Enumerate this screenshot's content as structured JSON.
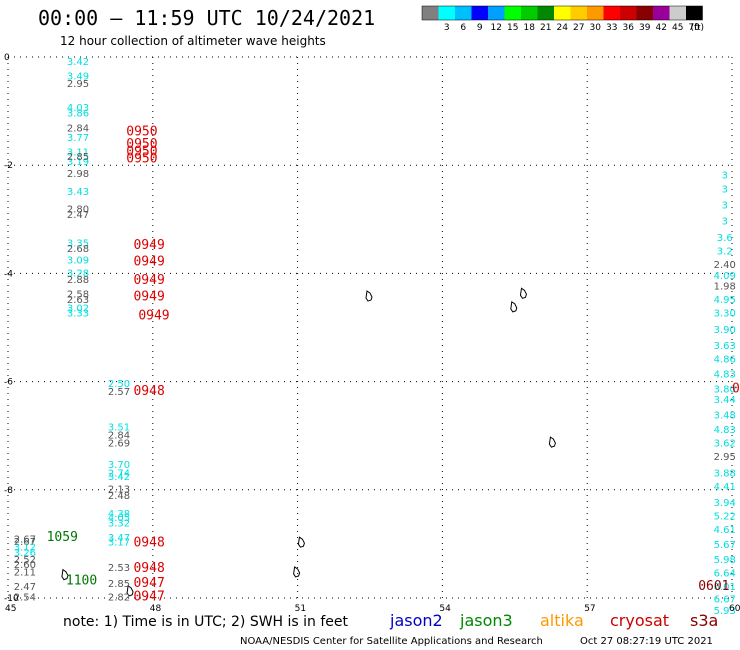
{
  "header": {
    "title": "00:00 – 11:59 UTC 10/24/2021",
    "subtitle": "12 hour collection of altimeter wave heights"
  },
  "legend": {
    "unit": "(ft)",
    "bins": [
      {
        "label": "",
        "color": "#808080"
      },
      {
        "label": "3",
        "color": "#00ffff"
      },
      {
        "label": "6",
        "color": "#00bfff"
      },
      {
        "label": "9",
        "color": "#0000ff"
      },
      {
        "label": "12",
        "color": "#00a0ff"
      },
      {
        "label": "15",
        "color": "#00ff00"
      },
      {
        "label": "18",
        "color": "#00cc00"
      },
      {
        "label": "21",
        "color": "#008800"
      },
      {
        "label": "24",
        "color": "#ffff00"
      },
      {
        "label": "27",
        "color": "#ffcc00"
      },
      {
        "label": "30",
        "color": "#ff9900"
      },
      {
        "label": "33",
        "color": "#ff0000"
      },
      {
        "label": "36",
        "color": "#cc0000"
      },
      {
        "label": "39",
        "color": "#880000"
      },
      {
        "label": "42",
        "color": "#990099"
      },
      {
        "label": "45",
        "color": "#cccccc"
      },
      {
        "label": "70",
        "color": "#000000"
      }
    ]
  },
  "axes": {
    "x_ticks": [
      "45",
      "48",
      "51",
      "54",
      "57",
      "60"
    ],
    "y_ticks": [
      "0",
      "-2",
      "-4",
      "-6",
      "-8",
      "-10"
    ],
    "x_range": [
      45,
      60
    ],
    "y_range": [
      -10,
      0
    ]
  },
  "colors": {
    "cyan": "#00e0e0",
    "gray": "#555555",
    "red": "#dd0000",
    "green": "#007700",
    "darkred": "#880000"
  },
  "tracks": [
    {
      "color": "cyan",
      "points": [
        {
          "lon": 46.45,
          "lat": -0.15,
          "v": "3.42"
        },
        {
          "lon": 46.45,
          "lat": -0.42,
          "v": "3.49"
        },
        {
          "lon": 46.45,
          "lat": -1.0,
          "v": "4.03"
        },
        {
          "lon": 46.45,
          "lat": -1.1,
          "v": "3.86"
        },
        {
          "lon": 46.45,
          "lat": -1.55,
          "v": "3.77"
        },
        {
          "lon": 46.45,
          "lat": -1.82,
          "v": "3.11"
        },
        {
          "lon": 46.45,
          "lat": -2.0,
          "v": "3.19"
        },
        {
          "lon": 46.45,
          "lat": -2.55,
          "v": "3.43"
        },
        {
          "lon": 46.45,
          "lat": -3.5,
          "v": "3.35"
        },
        {
          "lon": 46.45,
          "lat": -3.82,
          "v": "3.09"
        },
        {
          "lon": 46.45,
          "lat": -4.06,
          "v": "3.28"
        },
        {
          "lon": 46.45,
          "lat": -4.7,
          "v": "3.02"
        },
        {
          "lon": 46.45,
          "lat": -4.8,
          "v": "3.33"
        }
      ]
    },
    {
      "color": "gray",
      "points": [
        {
          "lon": 46.45,
          "lat": -0.55,
          "v": "2.95"
        },
        {
          "lon": 46.45,
          "lat": -1.38,
          "v": "2.84"
        },
        {
          "lon": 46.45,
          "lat": -1.9,
          "v": "2.85"
        },
        {
          "lon": 46.45,
          "lat": -2.22,
          "v": "2.98"
        },
        {
          "lon": 46.45,
          "lat": -2.87,
          "v": "2.80"
        },
        {
          "lon": 46.45,
          "lat": -2.98,
          "v": "2.47"
        },
        {
          "lon": 46.45,
          "lat": -3.6,
          "v": "2.68"
        },
        {
          "lon": 46.45,
          "lat": -4.18,
          "v": "2.88"
        },
        {
          "lon": 46.45,
          "lat": -4.45,
          "v": "2.58"
        },
        {
          "lon": 46.45,
          "lat": -4.55,
          "v": "2.63"
        }
      ]
    },
    {
      "color": "cyan",
      "points": [
        {
          "lon": 47.3,
          "lat": -6.1,
          "v": "2.50"
        },
        {
          "lon": 47.3,
          "lat": -6.9,
          "v": "3.51"
        },
        {
          "lon": 47.3,
          "lat": -7.6,
          "v": "3.70"
        },
        {
          "lon": 47.3,
          "lat": -7.75,
          "v": "2.74"
        },
        {
          "lon": 47.3,
          "lat": -7.82,
          "v": "3.42"
        },
        {
          "lon": 47.3,
          "lat": -8.5,
          "v": "4.38"
        },
        {
          "lon": 47.3,
          "lat": -8.58,
          "v": "4.05"
        },
        {
          "lon": 47.3,
          "lat": -8.68,
          "v": "3.32"
        },
        {
          "lon": 47.3,
          "lat": -8.95,
          "v": "3.47"
        },
        {
          "lon": 47.3,
          "lat": -9.03,
          "v": "3.17"
        }
      ]
    },
    {
      "color": "gray",
      "points": [
        {
          "lon": 47.3,
          "lat": -6.25,
          "v": "2.57"
        },
        {
          "lon": 47.3,
          "lat": -7.05,
          "v": "2.84"
        },
        {
          "lon": 47.3,
          "lat": -7.2,
          "v": "2.69"
        },
        {
          "lon": 47.3,
          "lat": -8.05,
          "v": "2.13"
        },
        {
          "lon": 47.3,
          "lat": -8.17,
          "v": "2.48"
        },
        {
          "lon": 47.3,
          "lat": -9.5,
          "v": "2.53"
        },
        {
          "lon": 47.3,
          "lat": -9.8,
          "v": "2.85"
        },
        {
          "lon": 47.3,
          "lat": -10.05,
          "v": "2.82"
        }
      ]
    },
    {
      "color": "gray",
      "points": [
        {
          "lon": 45.35,
          "lat": -8.97,
          "v": "2.67"
        },
        {
          "lon": 45.35,
          "lat": -9.02,
          "v": "2.67"
        },
        {
          "lon": 45.35,
          "lat": -9.35,
          "v": "2.52"
        },
        {
          "lon": 45.35,
          "lat": -9.45,
          "v": "2.60"
        },
        {
          "lon": 45.35,
          "lat": -9.58,
          "v": "2.11"
        },
        {
          "lon": 45.35,
          "lat": -9.85,
          "v": "2.47"
        },
        {
          "lon": 45.35,
          "lat": -10.05,
          "v": "2.54"
        }
      ]
    },
    {
      "color": "cyan",
      "points": [
        {
          "lon": 45.35,
          "lat": -9.12,
          "v": "3.12"
        },
        {
          "lon": 45.35,
          "lat": -9.22,
          "v": "3.26"
        }
      ]
    },
    {
      "color": "cyan",
      "points": [
        {
          "lon": 59.85,
          "lat": -2.25,
          "v": "3"
        },
        {
          "lon": 59.85,
          "lat": -2.5,
          "v": "3"
        },
        {
          "lon": 59.85,
          "lat": -2.8,
          "v": "3"
        },
        {
          "lon": 59.85,
          "lat": -3.1,
          "v": "3"
        },
        {
          "lon": 59.85,
          "lat": -3.4,
          "v": "3.6"
        },
        {
          "lon": 59.85,
          "lat": -3.65,
          "v": "3.2"
        },
        {
          "lon": 59.85,
          "lat": -4.1,
          "v": "4.09"
        },
        {
          "lon": 59.85,
          "lat": -4.55,
          "v": "4.95"
        },
        {
          "lon": 59.85,
          "lat": -4.8,
          "v": "3.30"
        },
        {
          "lon": 59.85,
          "lat": -5.1,
          "v": "3.90"
        },
        {
          "lon": 59.85,
          "lat": -5.4,
          "v": "3.63"
        },
        {
          "lon": 59.85,
          "lat": -5.65,
          "v": "4.86"
        },
        {
          "lon": 59.85,
          "lat": -5.92,
          "v": "4.83"
        },
        {
          "lon": 59.85,
          "lat": -6.2,
          "v": "3.80"
        },
        {
          "lon": 59.85,
          "lat": -6.4,
          "v": "3.44"
        },
        {
          "lon": 59.85,
          "lat": -6.68,
          "v": "3.48"
        },
        {
          "lon": 59.85,
          "lat": -6.95,
          "v": "4.83"
        },
        {
          "lon": 59.85,
          "lat": -7.2,
          "v": "3.62"
        },
        {
          "lon": 59.85,
          "lat": -7.75,
          "v": "3.88"
        },
        {
          "lon": 59.85,
          "lat": -8.0,
          "v": "4.41"
        },
        {
          "lon": 59.85,
          "lat": -8.3,
          "v": "3.94"
        },
        {
          "lon": 59.85,
          "lat": -8.55,
          "v": "5.22"
        },
        {
          "lon": 59.85,
          "lat": -8.8,
          "v": "4.61"
        },
        {
          "lon": 59.85,
          "lat": -9.08,
          "v": "5.67"
        },
        {
          "lon": 59.85,
          "lat": -9.35,
          "v": "5.98"
        },
        {
          "lon": 59.85,
          "lat": -9.6,
          "v": "6.64"
        },
        {
          "lon": 59.85,
          "lat": -9.85,
          "v": "6.01"
        },
        {
          "lon": 59.85,
          "lat": -10.08,
          "v": "6.67"
        },
        {
          "lon": 59.85,
          "lat": -10.3,
          "v": "5.93"
        }
      ]
    },
    {
      "color": "gray",
      "points": [
        {
          "lon": 59.85,
          "lat": -3.9,
          "v": "2.40"
        },
        {
          "lon": 59.85,
          "lat": -4.3,
          "v": "1.98"
        },
        {
          "lon": 59.85,
          "lat": -7.45,
          "v": "2.95"
        }
      ]
    }
  ],
  "time_labels": [
    {
      "lon": 47.45,
      "lat": -1.45,
      "t": "0950",
      "color": "red"
    },
    {
      "lon": 47.45,
      "lat": -1.68,
      "t": "0950",
      "color": "red"
    },
    {
      "lon": 47.45,
      "lat": -1.82,
      "t": "0950",
      "color": "red"
    },
    {
      "lon": 47.45,
      "lat": -1.95,
      "t": "0950",
      "color": "red"
    },
    {
      "lon": 47.6,
      "lat": -3.55,
      "t": "0949",
      "color": "red"
    },
    {
      "lon": 47.6,
      "lat": -3.85,
      "t": "0949",
      "color": "red"
    },
    {
      "lon": 47.6,
      "lat": -4.2,
      "t": "0949",
      "color": "red"
    },
    {
      "lon": 47.6,
      "lat": -4.5,
      "t": "0949",
      "color": "red"
    },
    {
      "lon": 47.7,
      "lat": -4.85,
      "t": "0949",
      "color": "red"
    },
    {
      "lon": 47.6,
      "lat": -6.25,
      "t": "0948",
      "color": "red"
    },
    {
      "lon": 47.6,
      "lat": -9.05,
      "t": "0948",
      "color": "red"
    },
    {
      "lon": 47.6,
      "lat": -9.52,
      "t": "0948",
      "color": "red"
    },
    {
      "lon": 47.6,
      "lat": -9.8,
      "t": "0947",
      "color": "red"
    },
    {
      "lon": 47.6,
      "lat": -10.05,
      "t": "0947",
      "color": "red"
    },
    {
      "lon": 45.8,
      "lat": -8.95,
      "t": "1059",
      "color": "green"
    },
    {
      "lon": 46.2,
      "lat": -9.75,
      "t": "1100",
      "color": "green"
    },
    {
      "lon": 59.3,
      "lat": -9.85,
      "t": "0601",
      "color": "darkred"
    },
    {
      "lon": 60.0,
      "lat": -6.2,
      "t": "0",
      "color": "red"
    }
  ],
  "islands": [
    {
      "lon": 46.2,
      "lat": -9.55
    },
    {
      "lon": 47.55,
      "lat": -9.85
    },
    {
      "lon": 51.0,
      "lat": -9.5
    },
    {
      "lon": 51.1,
      "lat": -8.95
    },
    {
      "lon": 55.5,
      "lat": -4.6
    },
    {
      "lon": 56.3,
      "lat": -7.1
    },
    {
      "lon": 52.5,
      "lat": -4.4
    },
    {
      "lon": 55.7,
      "lat": -4.35
    }
  ],
  "note": "note: 1) Time is in UTC; 2) SWH is in feet",
  "missions": [
    {
      "name": "jason2",
      "color": "#0000cc"
    },
    {
      "name": "jason3",
      "color": "#008800"
    },
    {
      "name": "altika",
      "color": "#ff9900"
    },
    {
      "name": "cryosat",
      "color": "#cc0000"
    },
    {
      "name": "s3a",
      "color": "#880000"
    }
  ],
  "footer": {
    "credit": "NOAA/NESDIS Center for Satellite Applications and Research",
    "timestamp": "Oct 27 08:27:19 UTC 2021"
  }
}
